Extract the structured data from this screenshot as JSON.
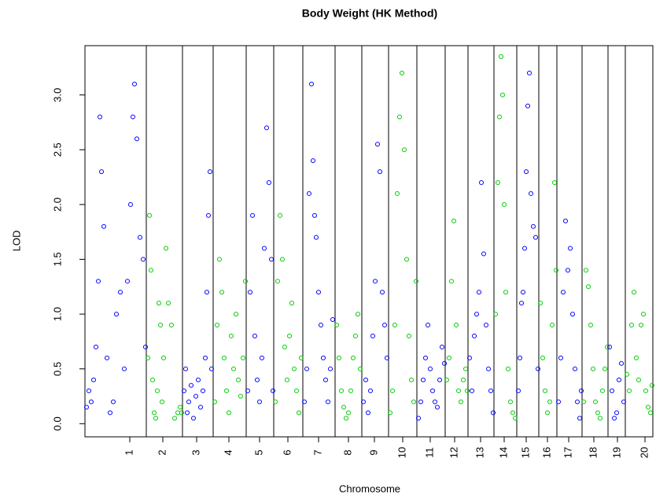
{
  "chart_data": {
    "type": "scatter",
    "title": "Body Weight (HK Method)",
    "xlabel": "Chromosome",
    "ylabel": "LOD",
    "xlim": [
      0,
      722
    ],
    "ylim": [
      -0.12,
      3.45
    ],
    "xticks": [
      {
        "value": 57,
        "label": "1"
      },
      {
        "value": 99,
        "label": "2"
      },
      {
        "value": 142,
        "label": "3"
      },
      {
        "value": 183,
        "label": "4"
      },
      {
        "value": 222,
        "label": "5"
      },
      {
        "value": 258,
        "label": "6"
      },
      {
        "value": 297,
        "label": "7"
      },
      {
        "value": 335,
        "label": "8"
      },
      {
        "value": 368,
        "label": "9"
      },
      {
        "value": 404,
        "label": "10"
      },
      {
        "value": 439,
        "label": "11"
      },
      {
        "value": 470,
        "label": "12"
      },
      {
        "value": 503,
        "label": "13"
      },
      {
        "value": 533,
        "label": "14"
      },
      {
        "value": 561,
        "label": "15"
      },
      {
        "value": 588,
        "label": "16"
      },
      {
        "value": 615,
        "label": "17"
      },
      {
        "value": 647,
        "label": "18"
      },
      {
        "value": 677,
        "label": "19"
      },
      {
        "value": 712,
        "label": "20"
      }
    ],
    "yticks": [
      {
        "value": 0,
        "label": "0.0"
      },
      0.5,
      {
        "value": 1,
        "label": "1.0"
      },
      1.5,
      {
        "value": 2,
        "label": "2.0"
      },
      2.5,
      {
        "value": 3,
        "label": "3.0"
      }
    ],
    "xlines": [
      78,
      124,
      163,
      205,
      240,
      277,
      318,
      352,
      386,
      422,
      458,
      487,
      520,
      549,
      577,
      600,
      632,
      665,
      687
    ],
    "series": [
      {
        "color": "#0000ff",
        "x": [
          2,
          5,
          8,
          11,
          14,
          17,
          19,
          21,
          24,
          28,
          32,
          36,
          40,
          45,
          50,
          54,
          58,
          61,
          63,
          66,
          70,
          74,
          77
        ],
        "values": [
          0.15,
          0.3,
          0.2,
          0.4,
          0.7,
          1.3,
          2.8,
          2.3,
          1.8,
          0.6,
          0.1,
          0.2,
          1.0,
          1.2,
          0.5,
          1.3,
          2.0,
          2.8,
          3.1,
          2.6,
          1.7,
          1.5,
          0.7
        ]
      },
      {
        "color": "#00cc00",
        "x": [
          80,
          82,
          84,
          86,
          88,
          90,
          92,
          94,
          96,
          98,
          100,
          103,
          106,
          110,
          114,
          118,
          121,
          123
        ],
        "values": [
          0.6,
          1.9,
          1.4,
          0.4,
          0.1,
          0.05,
          0.3,
          1.1,
          0.9,
          0.2,
          0.6,
          1.6,
          1.1,
          0.9,
          0.05,
          0.1,
          0.15,
          0.1
        ]
      },
      {
        "color": "#0000ff",
        "x": [
          126,
          128,
          130,
          132,
          135,
          138,
          141,
          144,
          147,
          150,
          153,
          155,
          157,
          159,
          161
        ],
        "values": [
          0.3,
          0.5,
          0.1,
          0.2,
          0.35,
          0.05,
          0.25,
          0.4,
          0.15,
          0.3,
          0.6,
          1.2,
          1.9,
          2.3,
          0.5
        ]
      },
      {
        "color": "#00cc00",
        "x": [
          165,
          168,
          171,
          174,
          177,
          180,
          183,
          186,
          189,
          192,
          195,
          198,
          201,
          204
        ],
        "values": [
          0.2,
          0.9,
          1.5,
          1.2,
          0.6,
          0.3,
          0.1,
          0.8,
          0.5,
          1.0,
          0.4,
          0.25,
          0.6,
          1.3
        ]
      },
      {
        "color": "#0000ff",
        "x": [
          207,
          210,
          213,
          216,
          219,
          222,
          225,
          228,
          231,
          234,
          237,
          239
        ],
        "values": [
          0.3,
          1.2,
          1.9,
          0.8,
          0.4,
          0.2,
          0.6,
          1.6,
          2.7,
          2.2,
          1.5,
          0.3
        ]
      },
      {
        "color": "#00cc00",
        "x": [
          242,
          245,
          248,
          251,
          254,
          257,
          260,
          263,
          266,
          269,
          272,
          275
        ],
        "values": [
          0.2,
          1.3,
          1.9,
          1.5,
          0.7,
          0.4,
          0.8,
          1.1,
          0.5,
          0.3,
          0.1,
          0.6
        ]
      },
      {
        "color": "#0000ff",
        "x": [
          279,
          282,
          285,
          288,
          290,
          292,
          294,
          297,
          300,
          303,
          306,
          309,
          312,
          315
        ],
        "values": [
          0.2,
          0.5,
          2.1,
          3.1,
          2.4,
          1.9,
          1.7,
          1.2,
          0.9,
          0.6,
          0.4,
          0.2,
          0.5,
          0.95
        ]
      },
      {
        "color": "#00cc00",
        "x": [
          320,
          323,
          326,
          329,
          332,
          335,
          338,
          341,
          344,
          347,
          350
        ],
        "values": [
          0.9,
          0.6,
          0.3,
          0.15,
          0.05,
          0.1,
          0.3,
          0.6,
          0.8,
          1.0,
          0.5
        ]
      },
      {
        "color": "#0000ff",
        "x": [
          354,
          357,
          360,
          363,
          366,
          369,
          372,
          375,
          378,
          381,
          384
        ],
        "values": [
          0.2,
          0.4,
          0.1,
          0.3,
          0.8,
          1.3,
          2.55,
          2.3,
          1.2,
          0.9,
          0.6
        ]
      },
      {
        "color": "#00cc00",
        "x": [
          388,
          391,
          394,
          397,
          400,
          403,
          406,
          409,
          412,
          415,
          418,
          421
        ],
        "values": [
          0.1,
          0.3,
          0.9,
          2.1,
          2.8,
          3.2,
          2.5,
          1.5,
          0.8,
          0.4,
          0.2,
          1.3
        ]
      },
      {
        "color": "#0000ff",
        "x": [
          424,
          427,
          430,
          433,
          436,
          439,
          442,
          445,
          448,
          451,
          454,
          457
        ],
        "values": [
          0.05,
          0.2,
          0.4,
          0.6,
          0.9,
          0.5,
          0.3,
          0.2,
          0.15,
          0.4,
          0.7,
          0.55
        ]
      },
      {
        "color": "#00cc00",
        "x": [
          460,
          463,
          466,
          469,
          472,
          475,
          478,
          481,
          484,
          486
        ],
        "values": [
          0.4,
          0.6,
          1.3,
          1.85,
          0.9,
          0.3,
          0.2,
          0.4,
          0.5,
          0.3
        ]
      },
      {
        "color": "#0000ff",
        "x": [
          489,
          492,
          495,
          498,
          501,
          504,
          507,
          510,
          513,
          516,
          519
        ],
        "values": [
          0.6,
          0.3,
          0.8,
          1.0,
          1.2,
          2.2,
          1.55,
          0.9,
          0.5,
          0.3,
          0.1
        ]
      },
      {
        "color": "#00cc00",
        "x": [
          522,
          525,
          527,
          529,
          531,
          533,
          535,
          538,
          541,
          544,
          547
        ],
        "values": [
          1.0,
          2.2,
          2.8,
          3.35,
          3.0,
          2.0,
          1.2,
          0.5,
          0.2,
          0.1,
          0.05
        ]
      },
      {
        "color": "#0000ff",
        "x": [
          551,
          553,
          555,
          557,
          559,
          561,
          563,
          565,
          567,
          570,
          573,
          576
        ],
        "values": [
          0.3,
          0.6,
          1.1,
          1.2,
          1.6,
          2.3,
          2.9,
          3.2,
          2.1,
          1.8,
          1.7,
          0.5
        ]
      },
      {
        "color": "#00cc00",
        "x": [
          579,
          582,
          585,
          588,
          591,
          594,
          597,
          599
        ],
        "values": [
          1.1,
          0.6,
          0.3,
          0.1,
          0.2,
          0.9,
          2.2,
          1.4
        ]
      },
      {
        "color": "#0000ff",
        "x": [
          602,
          605,
          608,
          611,
          614,
          617,
          620,
          623,
          626,
          629,
          631
        ],
        "values": [
          0.2,
          0.6,
          1.2,
          1.85,
          1.4,
          1.6,
          1.0,
          0.5,
          0.2,
          0.05,
          0.3
        ]
      },
      {
        "color": "#00cc00",
        "x": [
          634,
          637,
          640,
          643,
          646,
          649,
          652,
          655,
          658,
          661,
          664
        ],
        "values": [
          0.2,
          1.4,
          1.25,
          0.9,
          0.5,
          0.2,
          0.1,
          0.05,
          0.3,
          0.5,
          0.7
        ]
      },
      {
        "color": "#0000ff",
        "x": [
          667,
          670,
          673,
          676,
          679,
          682,
          685
        ],
        "values": [
          0.7,
          0.3,
          0.05,
          0.1,
          0.4,
          0.55,
          0.2
        ]
      },
      {
        "color": "#00cc00",
        "x": [
          689,
          692,
          695,
          698,
          701,
          704,
          707,
          710,
          713,
          716,
          719,
          721
        ],
        "values": [
          0.45,
          0.3,
          0.9,
          1.2,
          0.6,
          0.4,
          0.9,
          1.0,
          0.3,
          0.15,
          0.1,
          0.35
        ]
      }
    ]
  }
}
